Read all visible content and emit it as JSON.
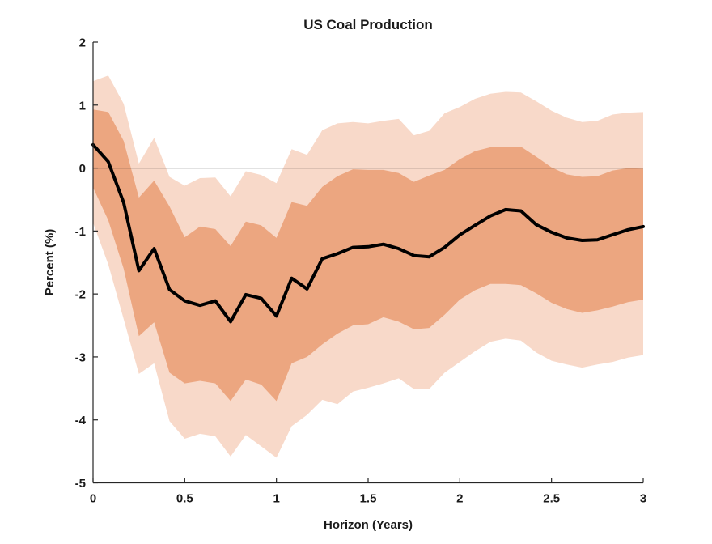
{
  "figure": {
    "title": "US Coal Production",
    "xlabel": "Horizon (Years)",
    "ylabel": "Percent (%)"
  },
  "chart_data": {
    "type": "area",
    "subtype": "impulse-response-fan-chart",
    "title": "US Coal Production",
    "xlabel": "Horizon (Years)",
    "ylabel": "Percent (%)",
    "xlim": [
      0,
      3
    ],
    "ylim": [
      -5,
      2
    ],
    "x_ticks": [
      0,
      0.5,
      1,
      1.5,
      2,
      2.5,
      3
    ],
    "x_tick_labels": [
      "0",
      "0.5",
      "1",
      "1.5",
      "2",
      "2.5",
      "3"
    ],
    "y_ticks": [
      2,
      1,
      0,
      -1,
      -2,
      -3,
      -4,
      -5
    ],
    "y_tick_labels": [
      "2",
      "1",
      "0",
      "-1",
      "-2",
      "-3",
      "-4",
      "-5"
    ],
    "grid": false,
    "zero_line": true,
    "legend": "none",
    "x": [
      0,
      0.083,
      0.167,
      0.25,
      0.333,
      0.417,
      0.5,
      0.583,
      0.667,
      0.75,
      0.833,
      0.917,
      1,
      1.083,
      1.167,
      1.25,
      1.333,
      1.417,
      1.5,
      1.583,
      1.667,
      1.75,
      1.833,
      1.917,
      2,
      2.083,
      2.167,
      2.25,
      2.333,
      2.417,
      2.5,
      2.583,
      2.667,
      2.75,
      2.833,
      2.917,
      3
    ],
    "series": [
      {
        "name": "outer-confidence-band",
        "kind": "band",
        "color": "#F8D9C9",
        "lower": [
          -0.87,
          -1.53,
          -2.4,
          -3.27,
          -3.1,
          -4.02,
          -4.3,
          -4.22,
          -4.26,
          -4.58,
          -4.24,
          -4.42,
          -4.6,
          -4.1,
          -3.92,
          -3.68,
          -3.75,
          -3.55,
          -3.49,
          -3.42,
          -3.34,
          -3.51,
          -3.51,
          -3.25,
          -3.08,
          -2.91,
          -2.76,
          -2.71,
          -2.74,
          -2.93,
          -3.06,
          -3.12,
          -3.17,
          -3.12,
          -3.08,
          -3.01,
          -2.97
        ],
        "upper": [
          1.38,
          1.47,
          1.02,
          0.07,
          0.48,
          -0.14,
          -0.28,
          -0.16,
          -0.15,
          -0.45,
          -0.05,
          -0.11,
          -0.24,
          0.3,
          0.21,
          0.6,
          0.71,
          0.73,
          0.71,
          0.75,
          0.78,
          0.52,
          0.59,
          0.87,
          0.97,
          1.1,
          1.18,
          1.21,
          1.2,
          1.06,
          0.91,
          0.8,
          0.73,
          0.75,
          0.85,
          0.88,
          0.89
        ]
      },
      {
        "name": "inner-confidence-band",
        "kind": "band",
        "color": "#ECA680",
        "lower": [
          -0.31,
          -0.83,
          -1.6,
          -2.67,
          -2.45,
          -3.25,
          -3.42,
          -3.38,
          -3.42,
          -3.7,
          -3.36,
          -3.44,
          -3.7,
          -3.1,
          -3.0,
          -2.8,
          -2.63,
          -2.5,
          -2.48,
          -2.37,
          -2.44,
          -2.56,
          -2.54,
          -2.33,
          -2.09,
          -1.94,
          -1.84,
          -1.84,
          -1.86,
          -1.99,
          -2.14,
          -2.24,
          -2.3,
          -2.26,
          -2.2,
          -2.13,
          -2.09
        ],
        "upper": [
          0.93,
          0.89,
          0.43,
          -0.47,
          -0.2,
          -0.61,
          -1.1,
          -0.93,
          -0.97,
          -1.24,
          -0.85,
          -0.91,
          -1.11,
          -0.54,
          -0.6,
          -0.3,
          -0.13,
          -0.02,
          -0.03,
          -0.03,
          -0.08,
          -0.22,
          -0.12,
          -0.03,
          0.14,
          0.27,
          0.33,
          0.33,
          0.34,
          0.18,
          0.01,
          -0.1,
          -0.14,
          -0.13,
          -0.04,
          0.0,
          -0.01
        ]
      },
      {
        "name": "point-estimate",
        "kind": "line",
        "color": "#000000",
        "width": 4,
        "values": [
          0.37,
          0.1,
          -0.55,
          -1.63,
          -1.28,
          -1.93,
          -2.11,
          -2.18,
          -2.11,
          -2.44,
          -2.01,
          -2.07,
          -2.35,
          -1.75,
          -1.92,
          -1.44,
          -1.36,
          -1.26,
          -1.25,
          -1.21,
          -1.28,
          -1.39,
          -1.41,
          -1.26,
          -1.06,
          -0.91,
          -0.76,
          -0.66,
          -0.68,
          -0.9,
          -1.02,
          -1.11,
          -1.15,
          -1.14,
          -1.06,
          -0.98,
          -0.93
        ]
      }
    ],
    "colors": {
      "outer_band": "#F8D9C9",
      "inner_band": "#ECA680",
      "line": "#000000",
      "zero_line": "#1a1a1a",
      "axis": "#262626",
      "text": "#1a1a1a",
      "background": "#ffffff"
    }
  }
}
